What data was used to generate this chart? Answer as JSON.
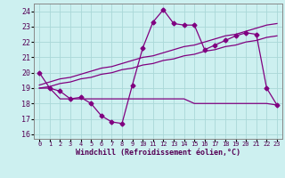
{
  "xlabel": "Windchill (Refroidissement éolien,°C)",
  "hours": [
    0,
    1,
    2,
    3,
    4,
    5,
    6,
    7,
    8,
    9,
    10,
    11,
    12,
    13,
    14,
    15,
    16,
    17,
    18,
    19,
    20,
    21,
    22,
    23
  ],
  "main_line": [
    20.0,
    19.0,
    18.8,
    18.3,
    18.4,
    18.0,
    17.2,
    16.8,
    16.7,
    19.2,
    21.6,
    23.3,
    24.1,
    23.2,
    23.1,
    23.1,
    21.5,
    21.8,
    22.1,
    22.4,
    22.6,
    22.5,
    19.0,
    17.9
  ],
  "trend_up1": [
    19.0,
    19.1,
    19.3,
    19.4,
    19.6,
    19.7,
    19.9,
    20.0,
    20.2,
    20.3,
    20.5,
    20.6,
    20.8,
    20.9,
    21.1,
    21.2,
    21.4,
    21.5,
    21.7,
    21.8,
    22.0,
    22.1,
    22.3,
    22.4
  ],
  "trend_up2": [
    19.2,
    19.4,
    19.6,
    19.7,
    19.9,
    20.1,
    20.3,
    20.4,
    20.6,
    20.8,
    21.0,
    21.1,
    21.3,
    21.5,
    21.7,
    21.8,
    22.0,
    22.2,
    22.4,
    22.5,
    22.7,
    22.9,
    23.1,
    23.2
  ],
  "trend_flat": [
    19.0,
    19.0,
    18.3,
    18.3,
    18.3,
    18.3,
    18.3,
    18.3,
    18.3,
    18.3,
    18.3,
    18.3,
    18.3,
    18.3,
    18.3,
    18.0,
    18.0,
    18.0,
    18.0,
    18.0,
    18.0,
    18.0,
    18.0,
    17.9
  ],
  "line_color": "#800080",
  "bg_color": "#cdf0f0",
  "grid_color": "#aad8d8",
  "ylim": [
    15.7,
    24.5
  ],
  "yticks": [
    16,
    17,
    18,
    19,
    20,
    21,
    22,
    23,
    24
  ],
  "marker": "D",
  "markersize": 2.5,
  "linewidth": 0.9
}
